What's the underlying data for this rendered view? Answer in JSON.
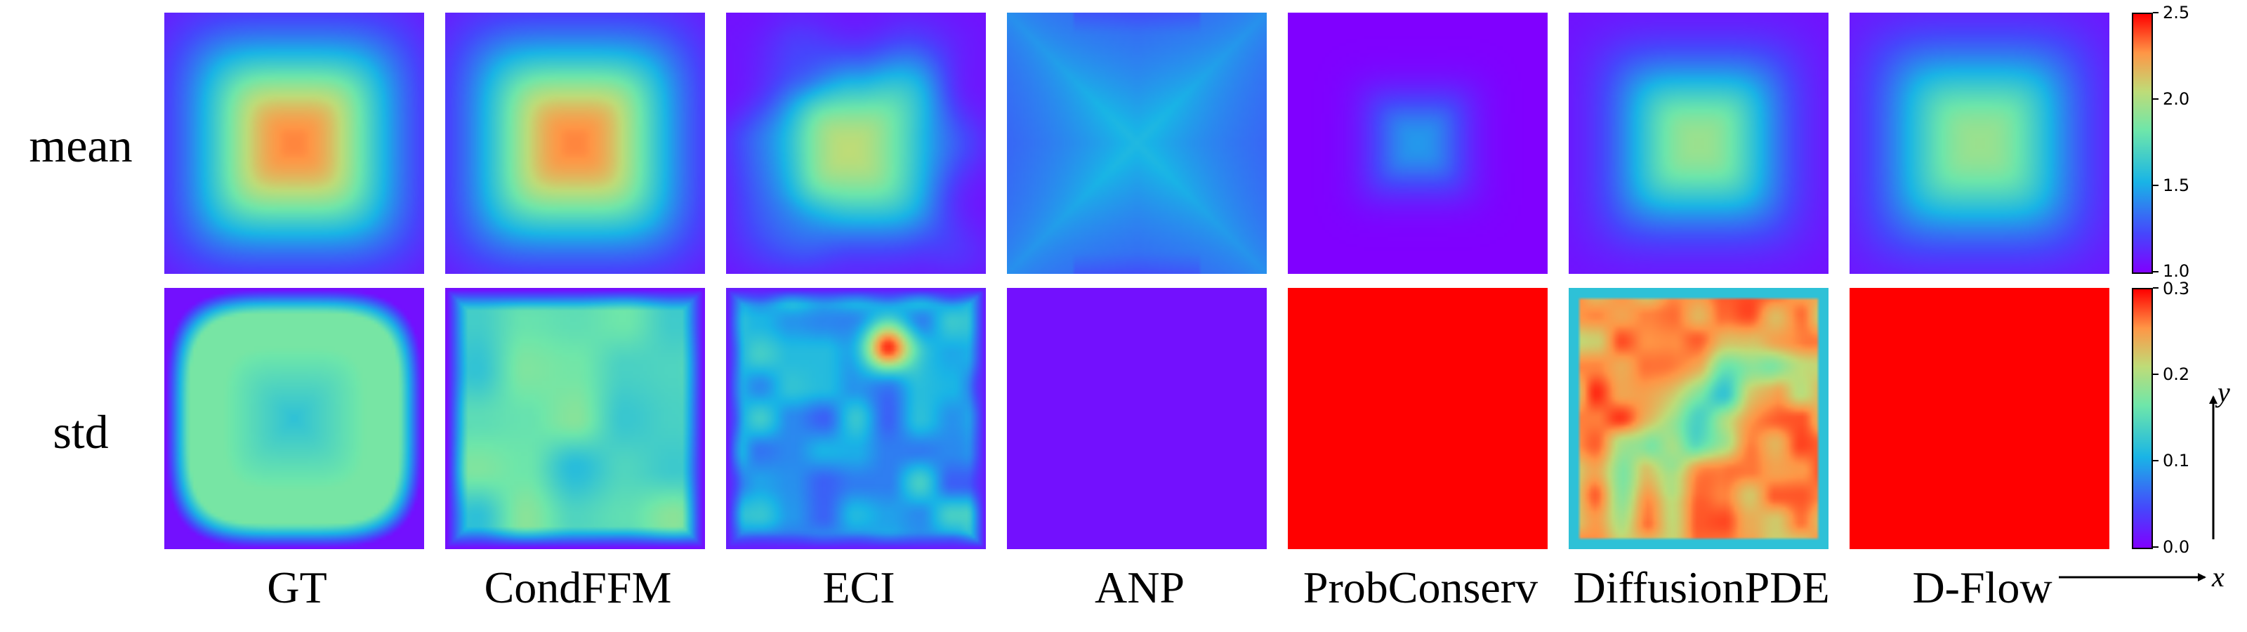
{
  "chart_data": {
    "type": "heatmap",
    "rows": [
      "mean",
      "std"
    ],
    "columns": [
      "GT",
      "CondFFM",
      "ECI",
      "ANP",
      "ProbConserv",
      "DiffusionPDE",
      "D-Flow"
    ],
    "colormap": "rainbow",
    "colorbars": {
      "mean": {
        "range": [
          1.0,
          2.5
        ],
        "ticks": [
          "1.0",
          "1.5",
          "2.0",
          "2.5"
        ]
      },
      "std": {
        "range": [
          0.0,
          0.3
        ],
        "ticks": [
          "0.0",
          "0.1",
          "0.2",
          "0.3"
        ]
      }
    },
    "axes": {
      "x": "x",
      "y": "y"
    },
    "fields": {
      "mean": [
        {
          "method": "GT",
          "kind": "blob",
          "peak": 2.3,
          "edge": 1.05,
          "w": 0.72
        },
        {
          "method": "CondFFM",
          "kind": "blob",
          "peak": 2.3,
          "edge": 1.05,
          "w": 0.72
        },
        {
          "method": "ECI",
          "kind": "irregular",
          "peak": 2.05,
          "edge": 1.05
        },
        {
          "method": "ANP",
          "kind": "cross",
          "peak": 1.55,
          "edge": 1.25
        },
        {
          "method": "ProbConserv",
          "kind": "blob",
          "peak": 1.45,
          "edge": 1.0,
          "w": 0.38
        },
        {
          "method": "DiffusionPDE",
          "kind": "blob",
          "peak": 1.95,
          "edge": 1.05,
          "w": 0.6
        },
        {
          "method": "D-Flow",
          "kind": "blob",
          "peak": 1.95,
          "edge": 1.05,
          "w": 0.68
        }
      ],
      "std": [
        {
          "method": "GT",
          "kind": "ring",
          "inner": 0.12,
          "outer": 0.17,
          "edge": 0.01
        },
        {
          "method": "CondFFM",
          "kind": "patchy",
          "base": 0.15
        },
        {
          "method": "ECI",
          "kind": "spotty",
          "base": 0.1
        },
        {
          "method": "ANP",
          "kind": "flat",
          "value": 0.01
        },
        {
          "method": "ProbConserv",
          "kind": "flat",
          "value": 0.3
        },
        {
          "method": "DiffusionPDE",
          "kind": "arc",
          "base": 0.25
        },
        {
          "method": "D-Flow",
          "kind": "flat",
          "value": 0.3
        }
      ]
    }
  },
  "labels": {
    "row_mean": "mean",
    "row_std": "std",
    "col_0": "GT",
    "col_1": "CondFFM",
    "col_2": "ECI",
    "col_3": "ANP",
    "col_4": "ProbConserv",
    "col_5": "DiffusionPDE",
    "col_6": "D-Flow",
    "axis_x": "x",
    "axis_y": "y"
  }
}
